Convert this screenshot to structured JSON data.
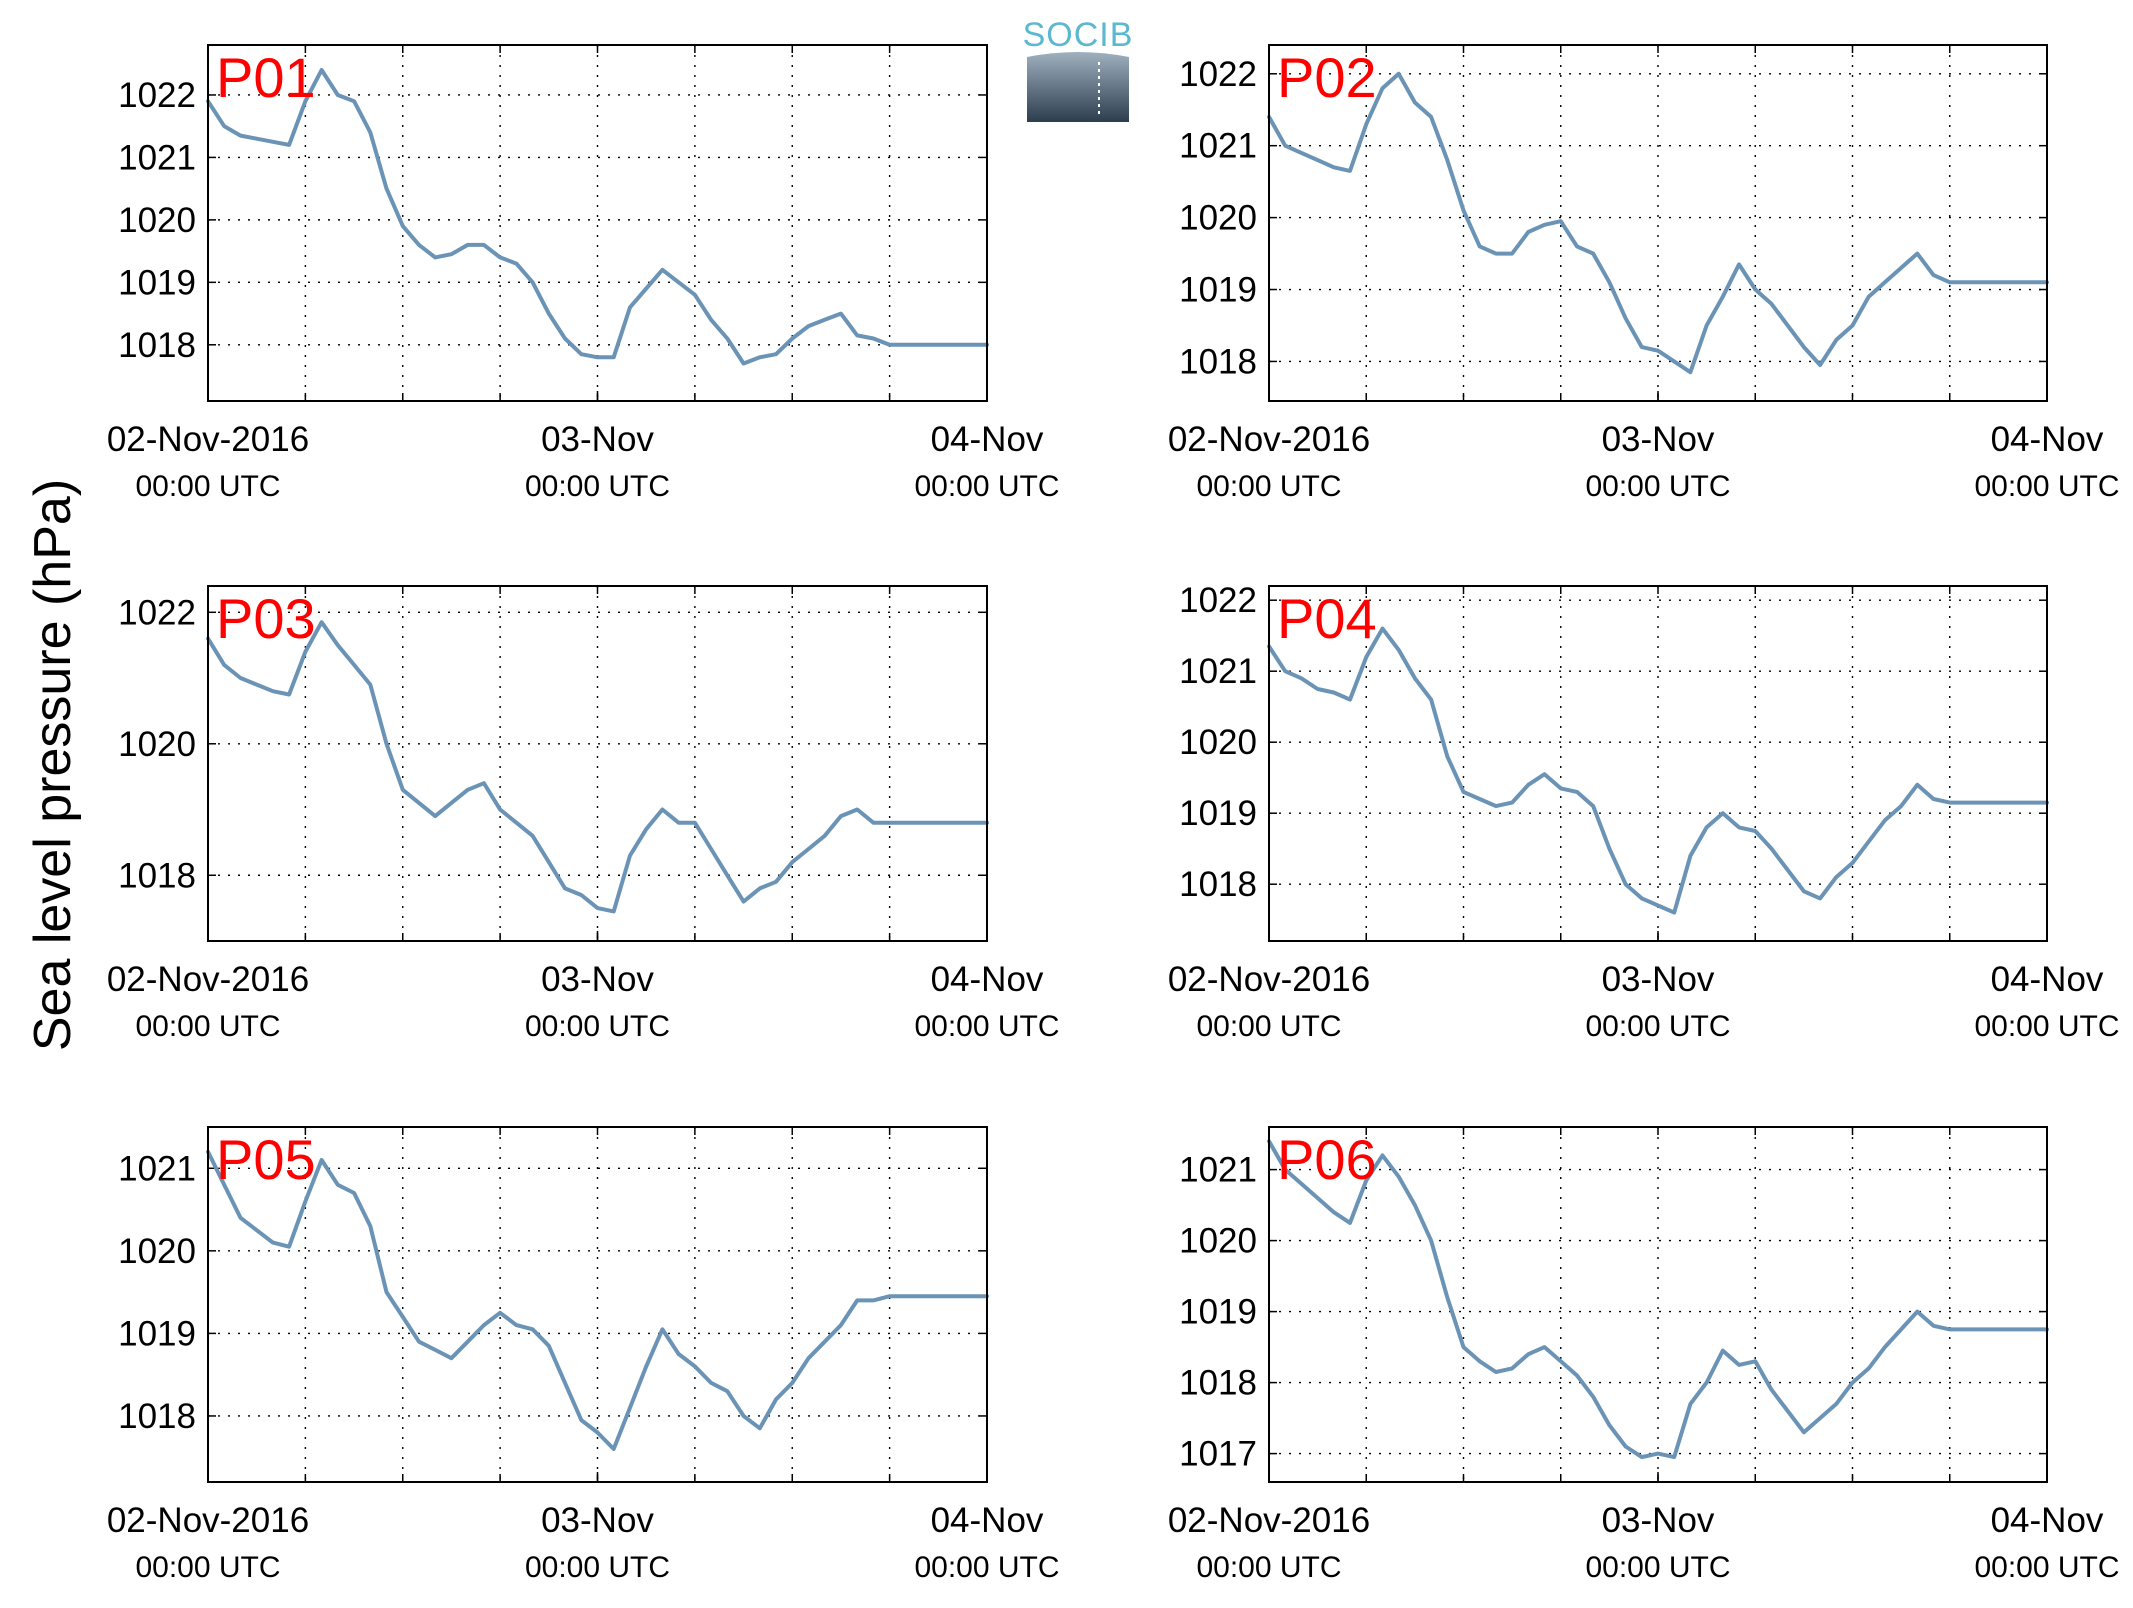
{
  "figure": {
    "ylabel": "Sea level pressure (hPa)",
    "logo_text": "SOCIB",
    "line_color": "#6a93b5",
    "label_color": "#ff0000"
  },
  "chart_data": [
    {
      "type": "line",
      "title": "P01",
      "xlim": [
        0,
        48
      ],
      "ylim": [
        1017.1,
        1022.8
      ],
      "yticks": [
        1018,
        1019,
        1020,
        1021,
        1022
      ],
      "xticks_major": [
        {
          "x": 0,
          "label": "02-Nov-2016",
          "sub": "00:00 UTC"
        },
        {
          "x": 24,
          "label": "03-Nov",
          "sub": "00:00 UTC"
        },
        {
          "x": 48,
          "label": "04-Nov",
          "sub": "00:00 UTC"
        }
      ],
      "xgrid": [
        6,
        12,
        18,
        24,
        30,
        36,
        42
      ],
      "grid": true,
      "x": [
        0,
        1,
        2,
        3,
        4,
        5,
        6,
        7,
        8,
        9,
        10,
        11,
        12,
        13,
        14,
        15,
        16,
        17,
        18,
        19,
        20,
        21,
        22,
        23,
        24,
        25,
        26,
        27,
        28,
        29,
        30,
        31,
        32,
        33,
        34,
        35,
        36,
        37,
        38,
        39,
        40,
        41,
        42,
        43,
        44,
        45,
        46,
        47,
        48
      ],
      "y": [
        1021.9,
        1021.5,
        1021.35,
        1021.3,
        1021.25,
        1021.2,
        1021.9,
        1022.4,
        1022.0,
        1021.9,
        1021.4,
        1020.5,
        1019.9,
        1019.6,
        1019.4,
        1019.45,
        1019.6,
        1019.6,
        1019.4,
        1019.3,
        1019.0,
        1018.5,
        1018.1,
        1017.85,
        1017.8,
        1017.8,
        1018.6,
        1018.9,
        1019.2,
        1019.0,
        1018.8,
        1018.4,
        1018.1,
        1017.7,
        1017.8,
        1017.85,
        1018.1,
        1018.3,
        1018.4,
        1018.5,
        1018.15,
        1018.1,
        1018.0,
        1018.0,
        1018.0,
        1018.0,
        1018.0,
        1018.0,
        1018.0
      ]
    },
    {
      "type": "line",
      "title": "P02",
      "xlim": [
        0,
        48
      ],
      "ylim": [
        1017.45,
        1022.4
      ],
      "yticks": [
        1018,
        1019,
        1020,
        1021,
        1022
      ],
      "xticks_major": [
        {
          "x": 0,
          "label": "02-Nov-2016",
          "sub": "00:00 UTC"
        },
        {
          "x": 24,
          "label": "03-Nov",
          "sub": "00:00 UTC"
        },
        {
          "x": 48,
          "label": "04-Nov",
          "sub": "00:00 UTC"
        }
      ],
      "xgrid": [
        6,
        12,
        18,
        24,
        30,
        36,
        42
      ],
      "grid": true,
      "x": [
        0,
        1,
        2,
        3,
        4,
        5,
        6,
        7,
        8,
        9,
        10,
        11,
        12,
        13,
        14,
        15,
        16,
        17,
        18,
        19,
        20,
        21,
        22,
        23,
        24,
        25,
        26,
        27,
        28,
        29,
        30,
        31,
        32,
        33,
        34,
        35,
        36,
        37,
        38,
        39,
        40,
        41,
        42,
        43,
        44,
        45,
        46,
        47,
        48
      ],
      "y": [
        1021.4,
        1021.0,
        1020.9,
        1020.8,
        1020.7,
        1020.65,
        1021.3,
        1021.8,
        1022.0,
        1021.6,
        1021.4,
        1020.8,
        1020.1,
        1019.6,
        1019.5,
        1019.5,
        1019.8,
        1019.9,
        1019.95,
        1019.6,
        1019.5,
        1019.1,
        1018.6,
        1018.2,
        1018.15,
        1018.0,
        1017.85,
        1018.5,
        1018.9,
        1019.35,
        1019.0,
        1018.8,
        1018.5,
        1018.2,
        1017.95,
        1018.3,
        1018.5,
        1018.9,
        1019.1,
        1019.3,
        1019.5,
        1019.2,
        1019.1,
        1019.1,
        1019.1,
        1019.1,
        1019.1,
        1019.1,
        1019.1
      ]
    },
    {
      "type": "line",
      "title": "P03",
      "xlim": [
        0,
        48
      ],
      "ylim": [
        1017.0,
        1022.4
      ],
      "yticks": [
        1018,
        1020,
        1022
      ],
      "xticks_major": [
        {
          "x": 0,
          "label": "02-Nov-2016",
          "sub": "00:00 UTC"
        },
        {
          "x": 24,
          "label": "03-Nov",
          "sub": "00:00 UTC"
        },
        {
          "x": 48,
          "label": "04-Nov",
          "sub": "00:00 UTC"
        }
      ],
      "xgrid": [
        6,
        12,
        18,
        24,
        30,
        36,
        42
      ],
      "grid": true,
      "x": [
        0,
        1,
        2,
        3,
        4,
        5,
        6,
        7,
        8,
        9,
        10,
        11,
        12,
        13,
        14,
        15,
        16,
        17,
        18,
        19,
        20,
        21,
        22,
        23,
        24,
        25,
        26,
        27,
        28,
        29,
        30,
        31,
        32,
        33,
        34,
        35,
        36,
        37,
        38,
        39,
        40,
        41,
        42,
        43,
        44,
        45,
        46,
        47,
        48
      ],
      "y": [
        1021.6,
        1021.2,
        1021.0,
        1020.9,
        1020.8,
        1020.75,
        1021.4,
        1021.85,
        1021.5,
        1021.2,
        1020.9,
        1020.0,
        1019.3,
        1019.1,
        1018.9,
        1019.1,
        1019.3,
        1019.4,
        1019.0,
        1018.8,
        1018.6,
        1018.2,
        1017.8,
        1017.7,
        1017.5,
        1017.45,
        1018.3,
        1018.7,
        1019.0,
        1018.8,
        1018.8,
        1018.4,
        1018.0,
        1017.6,
        1017.8,
        1017.9,
        1018.2,
        1018.4,
        1018.6,
        1018.9,
        1019.0,
        1018.8,
        1018.8,
        1018.8,
        1018.8,
        1018.8,
        1018.8,
        1018.8,
        1018.8
      ]
    },
    {
      "type": "line",
      "title": "P04",
      "xlim": [
        0,
        48
      ],
      "ylim": [
        1017.2,
        1022.2
      ],
      "yticks": [
        1018,
        1019,
        1020,
        1021,
        1022
      ],
      "xticks_major": [
        {
          "x": 0,
          "label": "02-Nov-2016",
          "sub": "00:00 UTC"
        },
        {
          "x": 24,
          "label": "03-Nov",
          "sub": "00:00 UTC"
        },
        {
          "x": 48,
          "label": "04-Nov",
          "sub": "00:00 UTC"
        }
      ],
      "xgrid": [
        6,
        12,
        18,
        24,
        30,
        36,
        42
      ],
      "grid": true,
      "x": [
        0,
        1,
        2,
        3,
        4,
        5,
        6,
        7,
        8,
        9,
        10,
        11,
        12,
        13,
        14,
        15,
        16,
        17,
        18,
        19,
        20,
        21,
        22,
        23,
        24,
        25,
        26,
        27,
        28,
        29,
        30,
        31,
        32,
        33,
        34,
        35,
        36,
        37,
        38,
        39,
        40,
        41,
        42,
        43,
        44,
        45,
        46,
        47,
        48
      ],
      "y": [
        1021.35,
        1021.0,
        1020.9,
        1020.75,
        1020.7,
        1020.6,
        1021.2,
        1021.6,
        1021.3,
        1020.9,
        1020.6,
        1019.8,
        1019.3,
        1019.2,
        1019.1,
        1019.15,
        1019.4,
        1019.55,
        1019.35,
        1019.3,
        1019.1,
        1018.5,
        1018.0,
        1017.8,
        1017.7,
        1017.6,
        1018.4,
        1018.8,
        1019.0,
        1018.8,
        1018.75,
        1018.5,
        1018.2,
        1017.9,
        1017.8,
        1018.1,
        1018.3,
        1018.6,
        1018.9,
        1019.1,
        1019.4,
        1019.2,
        1019.15,
        1019.15,
        1019.15,
        1019.15,
        1019.15,
        1019.15,
        1019.15
      ]
    },
    {
      "type": "line",
      "title": "P05",
      "xlim": [
        0,
        48
      ],
      "ylim": [
        1017.2,
        1021.5
      ],
      "yticks": [
        1018,
        1019,
        1020,
        1021
      ],
      "xticks_major": [
        {
          "x": 0,
          "label": "02-Nov-2016",
          "sub": "00:00 UTC"
        },
        {
          "x": 24,
          "label": "03-Nov",
          "sub": "00:00 UTC"
        },
        {
          "x": 48,
          "label": "04-Nov",
          "sub": "00:00 UTC"
        }
      ],
      "xgrid": [
        6,
        12,
        18,
        24,
        30,
        36,
        42
      ],
      "grid": true,
      "x": [
        0,
        1,
        2,
        3,
        4,
        5,
        6,
        7,
        8,
        9,
        10,
        11,
        12,
        13,
        14,
        15,
        16,
        17,
        18,
        19,
        20,
        21,
        22,
        23,
        24,
        25,
        26,
        27,
        28,
        29,
        30,
        31,
        32,
        33,
        34,
        35,
        36,
        37,
        38,
        39,
        40,
        41,
        42,
        43,
        44,
        45,
        46,
        47,
        48
      ],
      "y": [
        1021.2,
        1020.8,
        1020.4,
        1020.25,
        1020.1,
        1020.05,
        1020.6,
        1021.1,
        1020.8,
        1020.7,
        1020.3,
        1019.5,
        1019.2,
        1018.9,
        1018.8,
        1018.7,
        1018.9,
        1019.1,
        1019.25,
        1019.1,
        1019.05,
        1018.85,
        1018.4,
        1017.95,
        1017.8,
        1017.6,
        1018.1,
        1018.6,
        1019.05,
        1018.75,
        1018.6,
        1018.4,
        1018.3,
        1018.0,
        1017.85,
        1018.2,
        1018.4,
        1018.7,
        1018.9,
        1019.1,
        1019.4,
        1019.4,
        1019.45,
        1019.45,
        1019.45,
        1019.45,
        1019.45,
        1019.45,
        1019.45
      ]
    },
    {
      "type": "line",
      "title": "P06",
      "xlim": [
        0,
        48
      ],
      "ylim": [
        1016.6,
        1021.6
      ],
      "yticks": [
        1017,
        1018,
        1019,
        1020,
        1021
      ],
      "xticks_major": [
        {
          "x": 0,
          "label": "02-Nov-2016",
          "sub": "00:00 UTC"
        },
        {
          "x": 24,
          "label": "03-Nov",
          "sub": "00:00 UTC"
        },
        {
          "x": 48,
          "label": "04-Nov",
          "sub": "00:00 UTC"
        }
      ],
      "xgrid": [
        6,
        12,
        18,
        24,
        30,
        36,
        42
      ],
      "grid": true,
      "x": [
        0,
        1,
        2,
        3,
        4,
        5,
        6,
        7,
        8,
        9,
        10,
        11,
        12,
        13,
        14,
        15,
        16,
        17,
        18,
        19,
        20,
        21,
        22,
        23,
        24,
        25,
        26,
        27,
        28,
        29,
        30,
        31,
        32,
        33,
        34,
        35,
        36,
        37,
        38,
        39,
        40,
        41,
        42,
        43,
        44,
        45,
        46,
        47,
        48
      ],
      "y": [
        1021.4,
        1021.0,
        1020.8,
        1020.6,
        1020.4,
        1020.25,
        1020.85,
        1021.2,
        1020.9,
        1020.5,
        1020.0,
        1019.2,
        1018.5,
        1018.3,
        1018.15,
        1018.2,
        1018.4,
        1018.5,
        1018.3,
        1018.1,
        1017.8,
        1017.4,
        1017.1,
        1016.95,
        1017.0,
        1016.95,
        1017.7,
        1018.0,
        1018.45,
        1018.25,
        1018.3,
        1017.9,
        1017.6,
        1017.3,
        1017.5,
        1017.7,
        1018.0,
        1018.2,
        1018.5,
        1018.75,
        1019.0,
        1018.8,
        1018.75,
        1018.75,
        1018.75,
        1018.75,
        1018.75,
        1018.75,
        1018.75
      ]
    }
  ]
}
